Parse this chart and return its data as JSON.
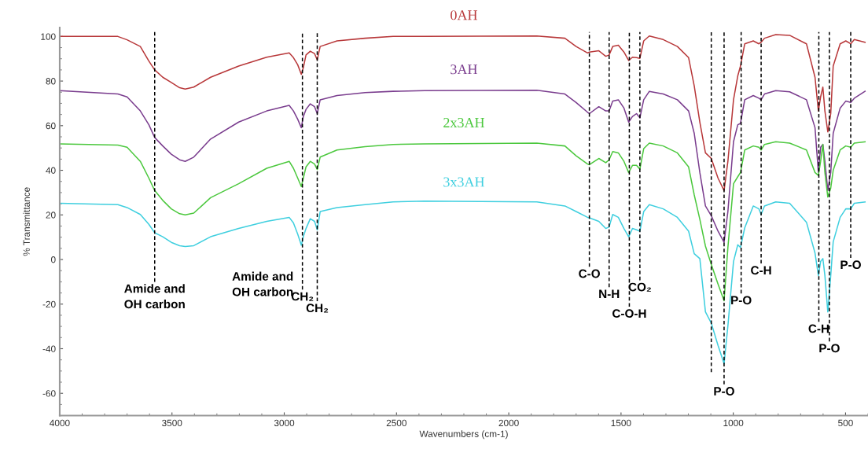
{
  "chart_data": {
    "type": "line",
    "xlabel": "Wavenumbers (cm-1)",
    "ylabel": "% Transmittance",
    "xlim": [
      4000,
      400
    ],
    "ylim": [
      -70,
      104
    ],
    "xticks": [
      4000,
      3500,
      3000,
      2500,
      2000,
      1500,
      1000,
      500
    ],
    "yticks": [
      -60,
      -40,
      -20,
      0,
      20,
      40,
      60,
      80,
      100
    ],
    "grid": false,
    "legend": false,
    "marker": "none",
    "line_style": "solid",
    "x": [
      4000,
      3741,
      3700,
      3641,
      3603,
      3577,
      3541,
      3503,
      3466,
      3441,
      3403,
      3328,
      3203,
      3078,
      2978,
      2959,
      2940,
      2924,
      2915,
      2903,
      2884,
      2865,
      2853,
      2840,
      2765,
      2640,
      2515,
      2375,
      1875,
      1750,
      1700,
      1649,
      1641,
      1599,
      1568,
      1553,
      1537,
      1512,
      1487,
      1466,
      1449,
      1431,
      1416,
      1399,
      1374,
      1312,
      1249,
      1199,
      1174,
      1149,
      1124,
      1098,
      1068,
      1041,
      1024,
      999,
      980,
      968,
      949,
      911,
      886,
      876,
      861,
      811,
      749,
      674,
      636,
      621,
      611,
      601,
      592,
      579,
      566,
      555,
      524,
      499,
      477,
      461,
      413
    ],
    "series": [
      {
        "name": "0AH",
        "color": "#b8383a",
        "values": [
          100,
          100,
          98.5,
          95.5,
          89,
          85,
          81.7,
          79.4,
          77,
          76.4,
          77.3,
          81.7,
          86.7,
          90.7,
          92.6,
          90.5,
          87.3,
          83,
          86,
          91.7,
          93.4,
          92.3,
          89.5,
          95.5,
          98,
          99.2,
          100,
          100,
          100.2,
          99.2,
          95.5,
          92.6,
          93,
          93.6,
          91.1,
          91.7,
          95.5,
          96.1,
          93,
          89.2,
          90.7,
          90.5,
          90.2,
          98,
          100.2,
          98.6,
          95.5,
          90.5,
          77.9,
          61.6,
          47.8,
          45.3,
          36.5,
          30.9,
          44,
          71.6,
          82.3,
          86.7,
          96.7,
          98,
          96.7,
          97.4,
          99.2,
          100.8,
          100.5,
          96.7,
          81.7,
          66.6,
          72.9,
          77.3,
          66.6,
          57.2,
          65.4,
          86.7,
          96.7,
          98,
          96.7,
          98.6,
          97.4
        ]
      },
      {
        "name": "3AH",
        "color": "#7a3d8e",
        "values": [
          75.7,
          74.2,
          72.9,
          66.6,
          60.4,
          54.7,
          50.9,
          47.2,
          44.7,
          44,
          45.9,
          54,
          61.6,
          66.6,
          69.1,
          66.6,
          62.9,
          59.1,
          64.1,
          67.3,
          69.8,
          68.5,
          65.4,
          71.6,
          73.5,
          74.8,
          75.4,
          75.7,
          75.9,
          74.2,
          70.4,
          66,
          65.4,
          68.5,
          66.6,
          66.6,
          71,
          71.6,
          67.9,
          61.6,
          64.1,
          65.4,
          63.5,
          71.6,
          75.4,
          74.2,
          71.6,
          66.6,
          56.6,
          39,
          24,
          19.6,
          12.7,
          7.7,
          21.5,
          52.8,
          60.4,
          61,
          71.6,
          73.5,
          72.3,
          71.6,
          74.2,
          75.7,
          75.2,
          71.6,
          59.1,
          39,
          50.3,
          51.6,
          44,
          30.9,
          39,
          56.6,
          67.9,
          71,
          70.4,
          72.3,
          75.4
        ]
      },
      {
        "name": "2x3AH",
        "color": "#4cc83e",
        "values": [
          51.8,
          51.3,
          50.3,
          44,
          36.5,
          30.9,
          26.5,
          22.7,
          20.5,
          20,
          20.8,
          27.7,
          34,
          40.9,
          44,
          40.9,
          36.5,
          32.7,
          36.5,
          41.5,
          44,
          42.8,
          40.3,
          45.9,
          49.1,
          50.6,
          51.6,
          51.8,
          52.2,
          50.9,
          46.5,
          42.8,
          42.5,
          45.3,
          43.4,
          44.7,
          48.4,
          47.8,
          44,
          39,
          42.2,
          42.2,
          40.5,
          49.7,
          52.2,
          50.9,
          47.8,
          41.5,
          29,
          18,
          6,
          -2.2,
          -11,
          -18.5,
          5.4,
          34,
          37.1,
          39,
          49.1,
          50.9,
          50.3,
          49.1,
          51.6,
          52.8,
          52.2,
          49.1,
          39,
          37.7,
          44,
          51.6,
          39,
          28,
          32,
          40,
          49.1,
          50.9,
          50.3,
          52.2,
          52.8
        ]
      },
      {
        "name": "3x3AH",
        "color": "#3fcfdf",
        "values": [
          25.2,
          24.6,
          23.3,
          20.2,
          15.8,
          12,
          10.2,
          7.7,
          6.2,
          5.8,
          6.2,
          10.2,
          13.9,
          17.1,
          18.9,
          16.4,
          11.4,
          6.4,
          10.2,
          13.9,
          18.3,
          17.1,
          13.3,
          21.5,
          23.3,
          24.6,
          25.8,
          26.2,
          25.8,
          24,
          21.5,
          18.9,
          18.7,
          17.1,
          13.9,
          14.6,
          20.2,
          18.9,
          13.9,
          10.2,
          13.9,
          13.3,
          12.7,
          21.5,
          24.6,
          22.7,
          18.9,
          12.7,
          2.6,
          0.4,
          -23.5,
          -28.5,
          -38.5,
          -46.7,
          -29.8,
          -0.9,
          6.6,
          5.4,
          14.2,
          24,
          22.7,
          20.2,
          24,
          25.8,
          25.2,
          16.7,
          2.9,
          -7.2,
          -0.9,
          0.4,
          -7.2,
          -23.5,
          -7.2,
          7.9,
          18.9,
          22.7,
          22.7,
          25.2,
          25.8
        ]
      }
    ],
    "ref_lines": [
      {
        "axis": "x",
        "value": 3577,
        "line_style": "dashed",
        "color": "#000000",
        "label": "Amide and\nOH carbon"
      },
      {
        "axis": "x",
        "value": 2919,
        "line_style": "dashed",
        "color": "#000000",
        "label": "CH₂"
      },
      {
        "axis": "x",
        "value": 2853,
        "line_style": "dashed",
        "color": "#000000",
        "label": "CH₂"
      },
      {
        "axis": "x",
        "value": 1641,
        "line_style": "dashed",
        "color": "#000000",
        "label": "C-O"
      },
      {
        "axis": "x",
        "value": 1553,
        "line_style": "dashed",
        "color": "#000000",
        "label": "N-H"
      },
      {
        "axis": "x",
        "value": 1463,
        "line_style": "dashed",
        "color": "#000000",
        "label": "C-O-H"
      },
      {
        "axis": "x",
        "value": 1416,
        "line_style": "dashed",
        "color": "#000000",
        "label": "CO₂"
      },
      {
        "axis": "x",
        "value": 1098,
        "line_style": "dashed",
        "color": "#000000"
      },
      {
        "axis": "x",
        "value": 1041,
        "line_style": "dashed",
        "color": "#000000",
        "label": "P-O"
      },
      {
        "axis": "x",
        "value": 965,
        "line_style": "dashed",
        "color": "#000000",
        "label": "P-O"
      },
      {
        "axis": "x",
        "value": 876,
        "line_style": "dashed",
        "color": "#000000",
        "label": "C-H"
      },
      {
        "axis": "x",
        "value": 619,
        "line_style": "dashed",
        "color": "#000000",
        "label": "C-H"
      },
      {
        "axis": "x",
        "value": 572,
        "line_style": "dashed",
        "color": "#000000",
        "label": "P-O"
      },
      {
        "axis": "x",
        "value": 477,
        "line_style": "dashed",
        "color": "#000000",
        "label": "P-O"
      }
    ],
    "annotations": [
      "Amide and\nOH carbon"
    ]
  }
}
